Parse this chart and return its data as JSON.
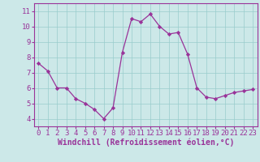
{
  "x": [
    0,
    1,
    2,
    3,
    4,
    5,
    6,
    7,
    8,
    9,
    10,
    11,
    12,
    13,
    14,
    15,
    16,
    17,
    18,
    19,
    20,
    21,
    22,
    23
  ],
  "y": [
    7.6,
    7.1,
    6.0,
    6.0,
    5.3,
    5.0,
    4.6,
    4.0,
    4.7,
    8.3,
    10.5,
    10.3,
    10.8,
    10.0,
    9.5,
    9.6,
    8.2,
    6.0,
    5.4,
    5.3,
    5.5,
    5.7,
    5.8,
    5.9
  ],
  "line_color": "#993399",
  "marker": "D",
  "marker_size": 2.2,
  "bg_color": "#cce8e8",
  "grid_color": "#99cccc",
  "xlabel": "Windchill (Refroidissement éolien,°C)",
  "xlim": [
    -0.5,
    23.5
  ],
  "ylim": [
    3.5,
    11.5
  ],
  "yticks": [
    4,
    5,
    6,
    7,
    8,
    9,
    10,
    11
  ],
  "xticks": [
    0,
    1,
    2,
    3,
    4,
    5,
    6,
    7,
    8,
    9,
    10,
    11,
    12,
    13,
    14,
    15,
    16,
    17,
    18,
    19,
    20,
    21,
    22,
    23
  ],
  "tick_fontsize": 6.5,
  "xlabel_fontsize": 7.0,
  "line_color_spine": "#993399",
  "spine_color": "#993399"
}
